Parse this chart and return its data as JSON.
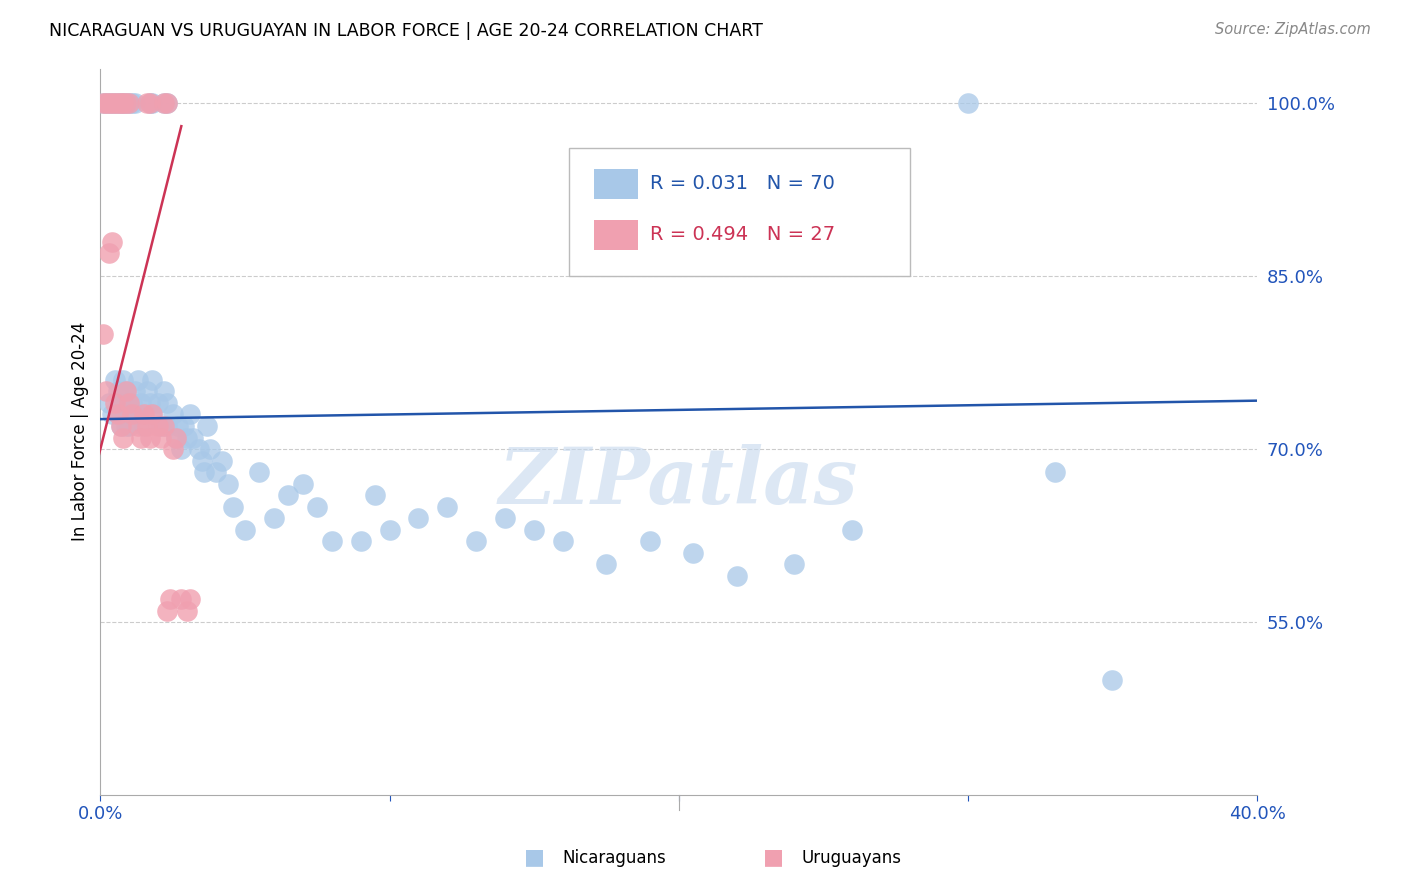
{
  "title": "NICARAGUAN VS URUGUAYAN IN LABOR FORCE | AGE 20-24 CORRELATION CHART",
  "source": "Source: ZipAtlas.com",
  "ylabel": "In Labor Force | Age 20-24",
  "legend_blue_R": "0.031",
  "legend_blue_N": "70",
  "legend_pink_R": "0.494",
  "legend_pink_N": "27",
  "legend_label_blue": "Nicaraguans",
  "legend_label_pink": "Uruguayans",
  "xlim": [
    0.0,
    0.4
  ],
  "ylim": [
    0.4,
    1.03
  ],
  "blue_color": "#A8C8E8",
  "pink_color": "#F0A0B0",
  "trendline_blue": "#2255AA",
  "trendline_pink": "#CC3355",
  "watermark": "ZIPatlas",
  "blue_trendline_x": [
    0.0,
    0.4
  ],
  "blue_trendline_y": [
    0.726,
    0.742
  ],
  "pink_trendline_x": [
    -0.002,
    0.028
  ],
  "pink_trendline_y": [
    0.68,
    0.98
  ],
  "blue_x": [
    0.003,
    0.004,
    0.005,
    0.006,
    0.006,
    0.007,
    0.007,
    0.008,
    0.008,
    0.009,
    0.009,
    0.01,
    0.01,
    0.011,
    0.012,
    0.012,
    0.013,
    0.013,
    0.014,
    0.015,
    0.016,
    0.017,
    0.018,
    0.018,
    0.02,
    0.021,
    0.022,
    0.023,
    0.023,
    0.025,
    0.026,
    0.027,
    0.028,
    0.029,
    0.03,
    0.031,
    0.032,
    0.034,
    0.035,
    0.036,
    0.037,
    0.038,
    0.04,
    0.042,
    0.044,
    0.046,
    0.05,
    0.055,
    0.06,
    0.065,
    0.07,
    0.075,
    0.08,
    0.09,
    0.095,
    0.1,
    0.11,
    0.12,
    0.13,
    0.14,
    0.15,
    0.16,
    0.175,
    0.19,
    0.205,
    0.22,
    0.24,
    0.26,
    0.33,
    0.35
  ],
  "blue_y": [
    0.74,
    0.73,
    0.76,
    0.75,
    0.73,
    0.74,
    0.72,
    0.76,
    0.73,
    0.75,
    0.72,
    0.74,
    0.72,
    0.74,
    0.75,
    0.73,
    0.76,
    0.73,
    0.74,
    0.72,
    0.75,
    0.74,
    0.73,
    0.76,
    0.74,
    0.72,
    0.75,
    0.74,
    0.72,
    0.73,
    0.71,
    0.72,
    0.7,
    0.72,
    0.71,
    0.73,
    0.71,
    0.7,
    0.69,
    0.68,
    0.72,
    0.7,
    0.68,
    0.69,
    0.67,
    0.65,
    0.63,
    0.68,
    0.64,
    0.66,
    0.67,
    0.65,
    0.62,
    0.62,
    0.66,
    0.63,
    0.64,
    0.65,
    0.62,
    0.64,
    0.63,
    0.62,
    0.6,
    0.62,
    0.61,
    0.59,
    0.6,
    0.63,
    0.68,
    0.5
  ],
  "blue_top_x": [
    0.001,
    0.002,
    0.003,
    0.004,
    0.005,
    0.006,
    0.007,
    0.008,
    0.009,
    0.01,
    0.011,
    0.012,
    0.017,
    0.018,
    0.022,
    0.023,
    0.3
  ],
  "pink_x": [
    0.001,
    0.002,
    0.003,
    0.004,
    0.005,
    0.006,
    0.007,
    0.008,
    0.009,
    0.01,
    0.011,
    0.013,
    0.014,
    0.015,
    0.016,
    0.017,
    0.018,
    0.02,
    0.021,
    0.022,
    0.023,
    0.024,
    0.025,
    0.026,
    0.028,
    0.03,
    0.031
  ],
  "pink_y": [
    0.8,
    0.75,
    0.87,
    0.88,
    0.74,
    0.73,
    0.72,
    0.71,
    0.75,
    0.74,
    0.73,
    0.72,
    0.71,
    0.73,
    0.72,
    0.71,
    0.73,
    0.72,
    0.71,
    0.72,
    0.56,
    0.57,
    0.7,
    0.71,
    0.57,
    0.56,
    0.57
  ],
  "pink_top_x": [
    0.001,
    0.002,
    0.003,
    0.004,
    0.005,
    0.006,
    0.007,
    0.008,
    0.009,
    0.01,
    0.016,
    0.017,
    0.022,
    0.023
  ]
}
